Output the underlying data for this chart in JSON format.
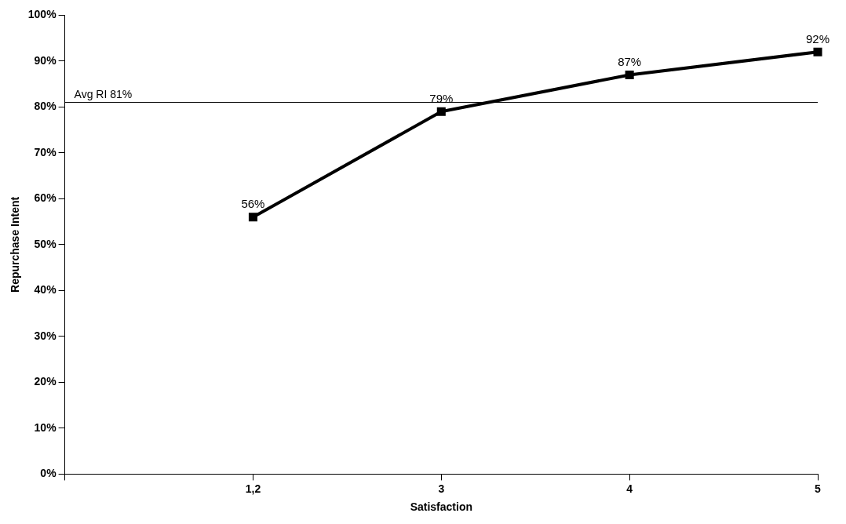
{
  "chart_data": {
    "type": "line",
    "xlabel": "Satisfaction",
    "ylabel": "Repurchase Intent",
    "categories": [
      null,
      "1,2",
      "3",
      "4",
      "5"
    ],
    "series": [
      {
        "color": "#000000",
        "values": [
          null,
          56,
          79,
          87,
          92
        ],
        "value_labels": [
          null,
          "56%",
          "79%",
          "87%",
          "92%"
        ]
      }
    ],
    "ylim": [
      0,
      100
    ],
    "yticks": [
      {
        "value": 0,
        "label": "0%"
      },
      {
        "value": 10,
        "label": "10%"
      },
      {
        "value": 20,
        "label": "20%"
      },
      {
        "value": 30,
        "label": "30%"
      },
      {
        "value": 40,
        "label": "40%"
      },
      {
        "value": 50,
        "label": "50%"
      },
      {
        "value": 60,
        "label": "60%"
      },
      {
        "value": 70,
        "label": "70%"
      },
      {
        "value": 80,
        "label": "80%"
      },
      {
        "value": 90,
        "label": "90%"
      },
      {
        "value": 100,
        "label": "100%"
      }
    ],
    "ref_lines": [
      {
        "axis": "y",
        "value": 81,
        "label": "Avg RI 81%",
        "color": "#000000"
      }
    ],
    "grid": false,
    "legend": false,
    "marker": "square",
    "line_style": "solid"
  }
}
